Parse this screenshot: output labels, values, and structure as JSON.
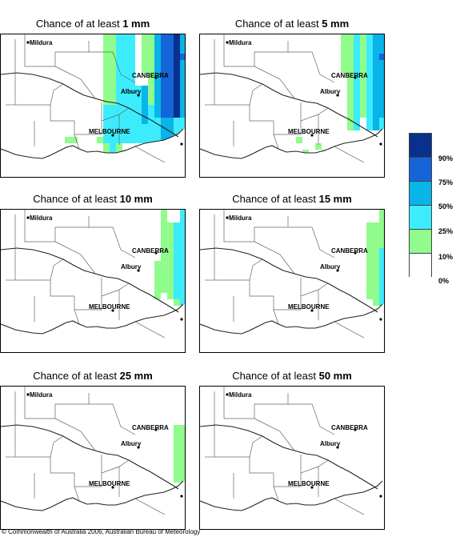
{
  "panels": [
    {
      "prefix": "Chance of at least ",
      "amount": "1 mm",
      "intensity": 5
    },
    {
      "prefix": "Chance of at least ",
      "amount": "5 mm",
      "intensity": 4
    },
    {
      "prefix": "Chance of at least ",
      "amount": "10 mm",
      "intensity": 3
    },
    {
      "prefix": "Chance of at least ",
      "amount": "15 mm",
      "intensity": 2
    },
    {
      "prefix": "Chance of at least ",
      "amount": "25 mm",
      "intensity": 1
    },
    {
      "prefix": "Chance of at least ",
      "amount": "50 mm",
      "intensity": 0
    }
  ],
  "places": {
    "mildura": "Mildura",
    "canberra": "CANBERRA",
    "albury": "Albury",
    "melbourne": "MELBOURNE"
  },
  "legend": {
    "colors": [
      "#08308c",
      "#1565d8",
      "#08b4e8",
      "#3cecfc",
      "#90fc8c",
      "#ffffff"
    ],
    "labels": [
      "90%",
      "75%",
      "50%",
      "25%",
      "10%",
      "0%"
    ]
  },
  "copyright": "© Commonwealth of Australia 2006, Australian Bureau of Meteorology"
}
